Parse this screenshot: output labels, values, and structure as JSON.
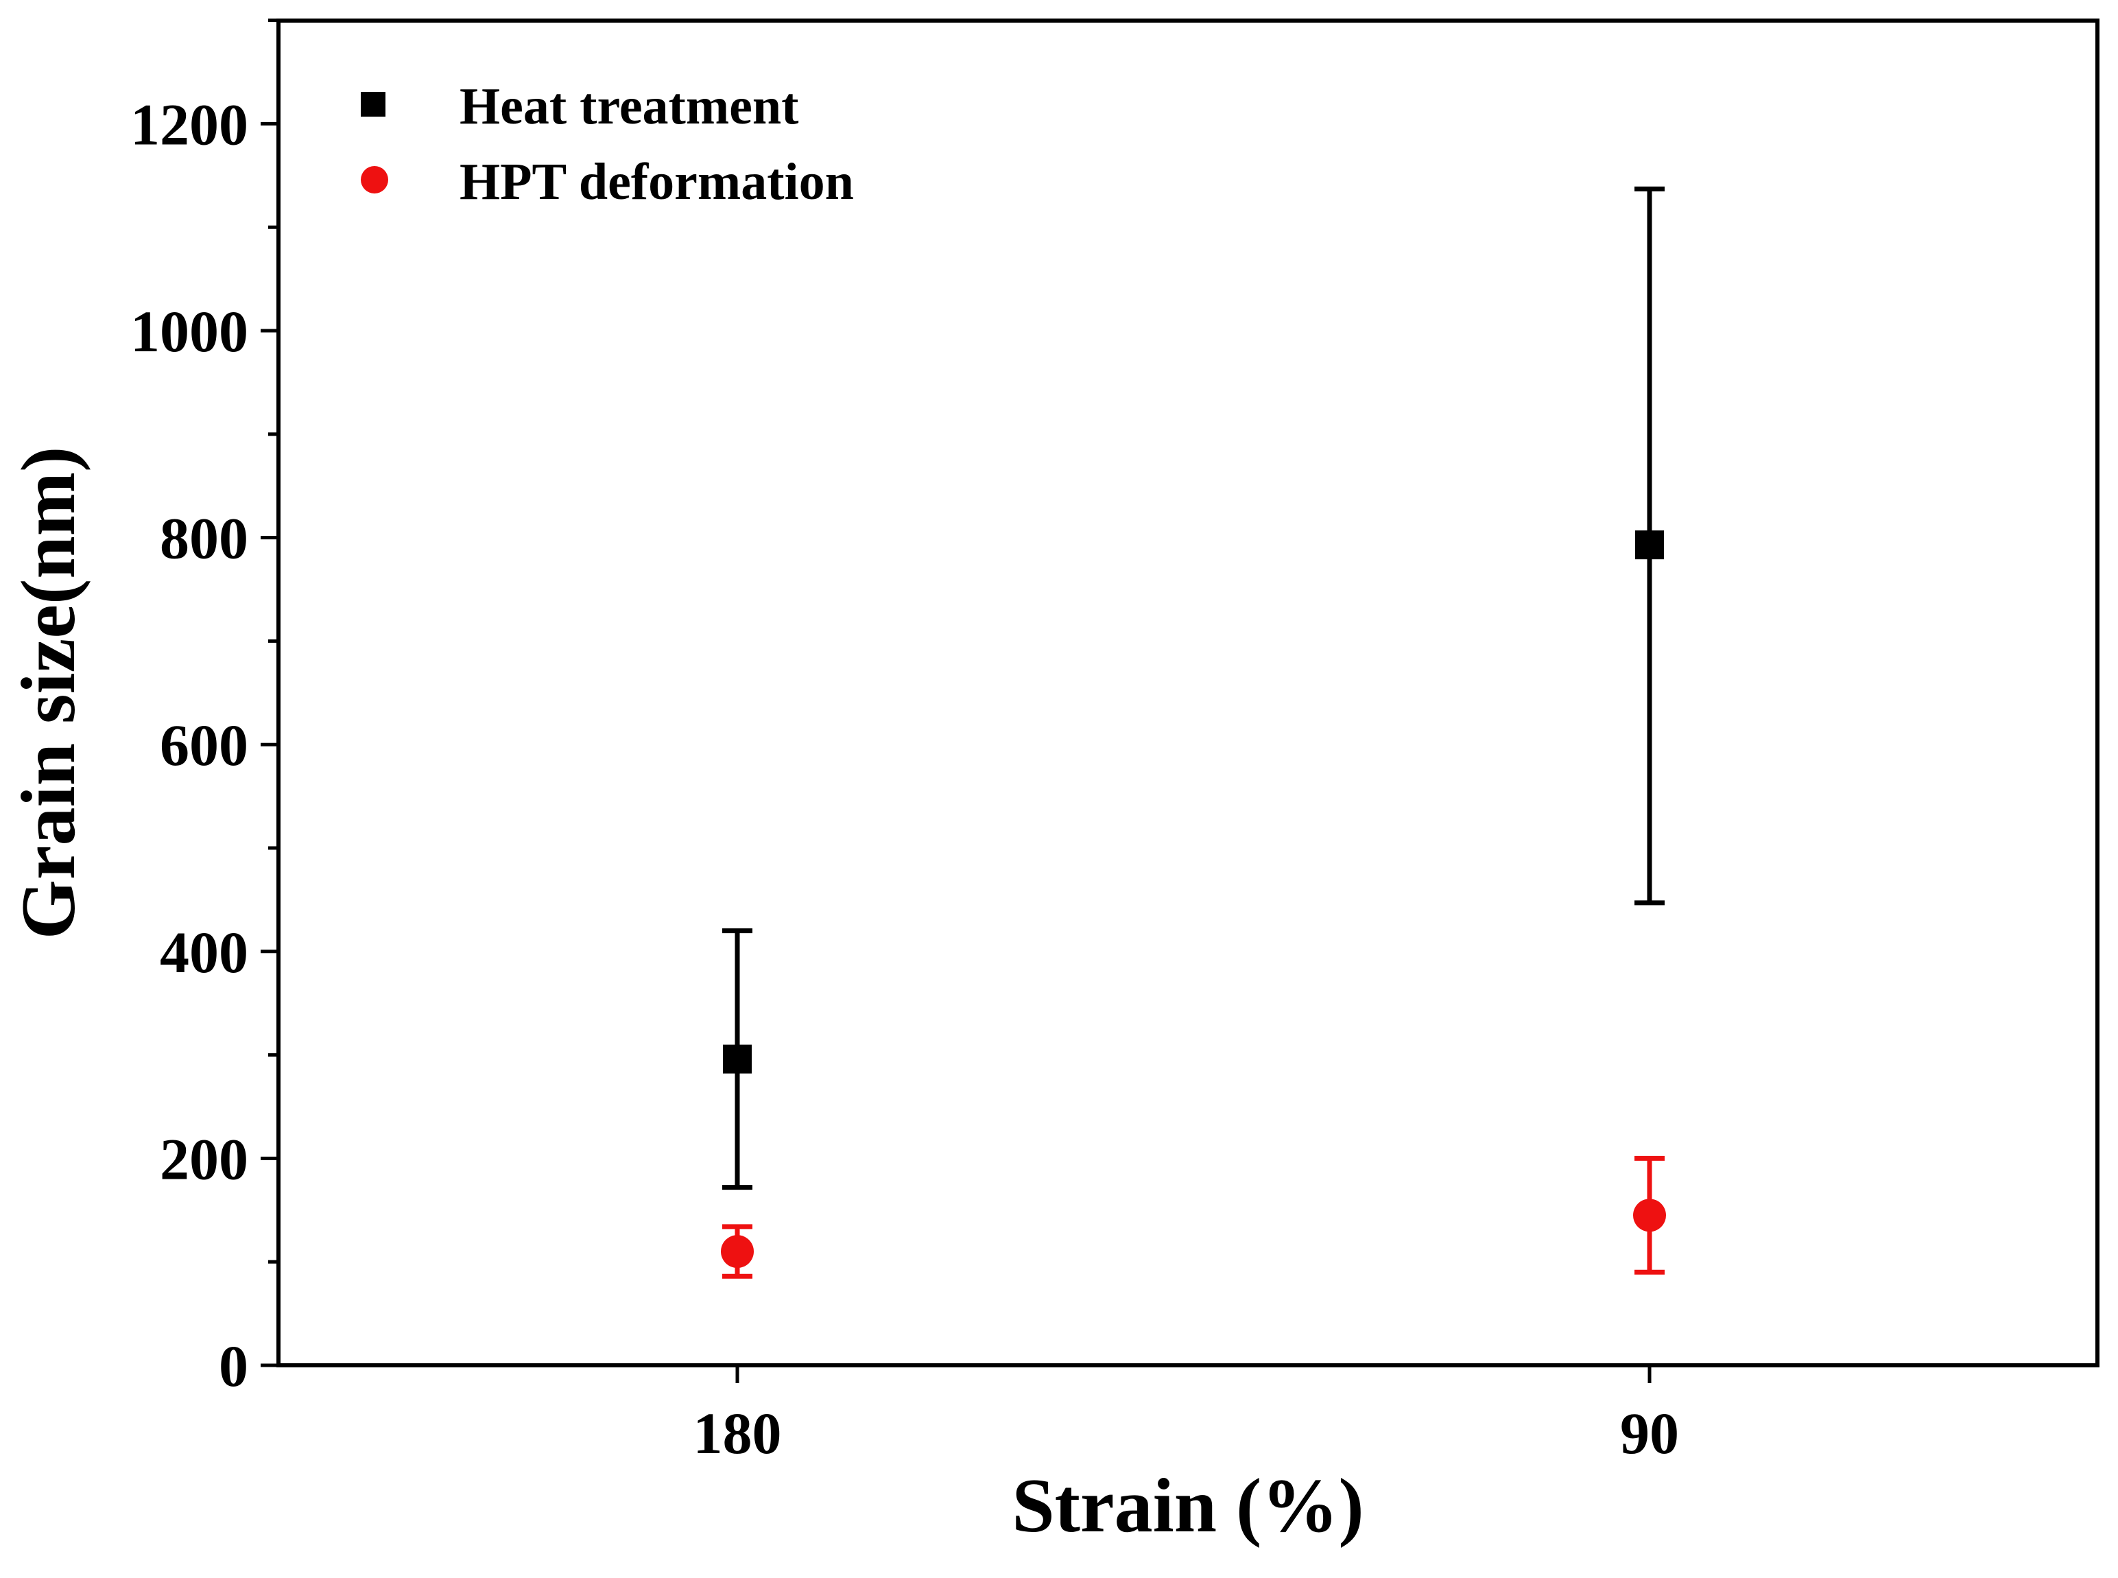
{
  "chart_data": {
    "type": "scatter",
    "title": "",
    "xlabel": "Strain (%)",
    "ylabel": "Grain size(nm)",
    "categories": [
      "180",
      "90"
    ],
    "ylim": [
      0,
      1300
    ],
    "yticks": [
      "0",
      "200",
      "400",
      "600",
      "800",
      "1000",
      "1200"
    ],
    "legend_position": "top-left",
    "grid": false,
    "series": [
      {
        "name": "Heat treatment",
        "marker": "square",
        "color": "#000000",
        "values": [
          296,
          793
        ],
        "error_low": [
          172,
          447
        ],
        "error_high": [
          420,
          1137
        ]
      },
      {
        "name": "HPT deformation",
        "marker": "circle",
        "color": "#ee1111",
        "values": [
          110,
          145
        ],
        "error_low": [
          86,
          90
        ],
        "error_high": [
          134,
          200
        ]
      }
    ]
  }
}
